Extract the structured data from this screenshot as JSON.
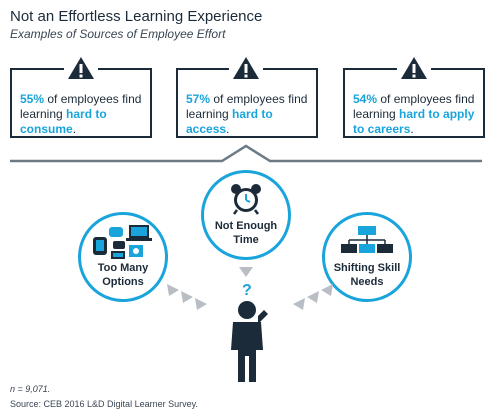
{
  "header": {
    "title": "Not an Effortless Learning Experience",
    "subtitle": "Examples of Sources of Employee Effort"
  },
  "stats": [
    {
      "pct": "55%",
      "pre": " of employees find learning ",
      "highlight": "hard to consume",
      "post": "."
    },
    {
      "pct": "57%",
      "pre": " of employees find learning ",
      "highlight": "hard to access",
      "post": "."
    },
    {
      "pct": "54%",
      "pre": " of employees find learning ",
      "highlight": "hard to apply to careers",
      "post": "."
    }
  ],
  "bubbles": {
    "left": {
      "label_line1": "Too Many",
      "label_line2": "Options"
    },
    "center": {
      "label_line1": "Not Enough",
      "label_line2": "Time"
    },
    "right": {
      "label_line1": "Shifting Skill",
      "label_line2": "Needs"
    }
  },
  "question_mark": "?",
  "footnote": {
    "n": "n = 9,071.",
    "source": "Source: CEB 2016 L&D Digital Learner Survey."
  },
  "colors": {
    "accent": "#1aa4dc",
    "dark": "#1c2b39",
    "gray": "#6c7a86",
    "arrow_gray": "#b8bec4"
  },
  "icons": [
    "warning-icon",
    "devices-icon",
    "alarm-clock-icon",
    "org-chart-icon",
    "person-thinking-icon"
  ]
}
